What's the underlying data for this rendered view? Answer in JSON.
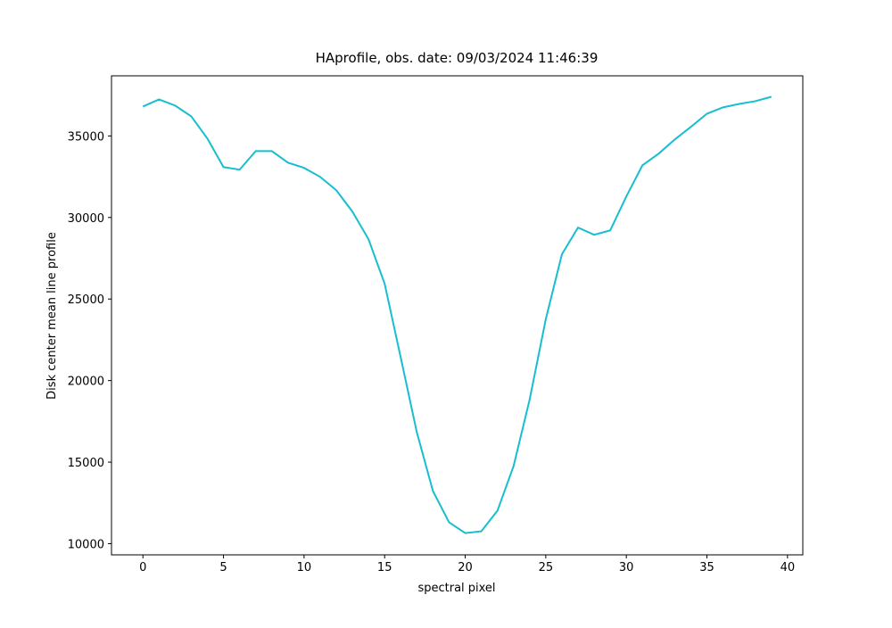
{
  "chart_data": {
    "type": "line",
    "title": "HAprofile, obs. date: 09/03/2024 11:46:39",
    "xlabel": "spectral pixel",
    "ylabel": "Disk center mean line profile",
    "x": [
      0,
      1,
      2,
      3,
      4,
      5,
      6,
      7,
      8,
      9,
      10,
      11,
      12,
      13,
      14,
      15,
      16,
      17,
      18,
      19,
      20,
      21,
      22,
      23,
      24,
      25,
      26,
      27,
      28,
      29,
      30,
      31,
      32,
      33,
      34,
      35,
      36,
      37,
      38,
      39
    ],
    "series": [
      {
        "color": "#17becf",
        "values": [
          36800,
          37240,
          36860,
          36200,
          34840,
          33090,
          32930,
          34070,
          34070,
          33360,
          33040,
          32490,
          31670,
          30360,
          28670,
          25940,
          21410,
          16820,
          13220,
          11310,
          10650,
          10760,
          12020,
          14750,
          18840,
          23760,
          27740,
          29380,
          28940,
          29210,
          31290,
          33200,
          33910,
          34780,
          35550,
          36360,
          36750,
          36960,
          37130,
          37400
        ]
      }
    ],
    "xlim": [
      -1.95,
      40.95
    ],
    "ylim": [
      9315,
      38685
    ],
    "xticks": [
      0,
      5,
      10,
      15,
      20,
      25,
      30,
      35,
      40
    ],
    "yticks": [
      10000,
      15000,
      20000,
      25000,
      30000,
      35000
    ]
  }
}
